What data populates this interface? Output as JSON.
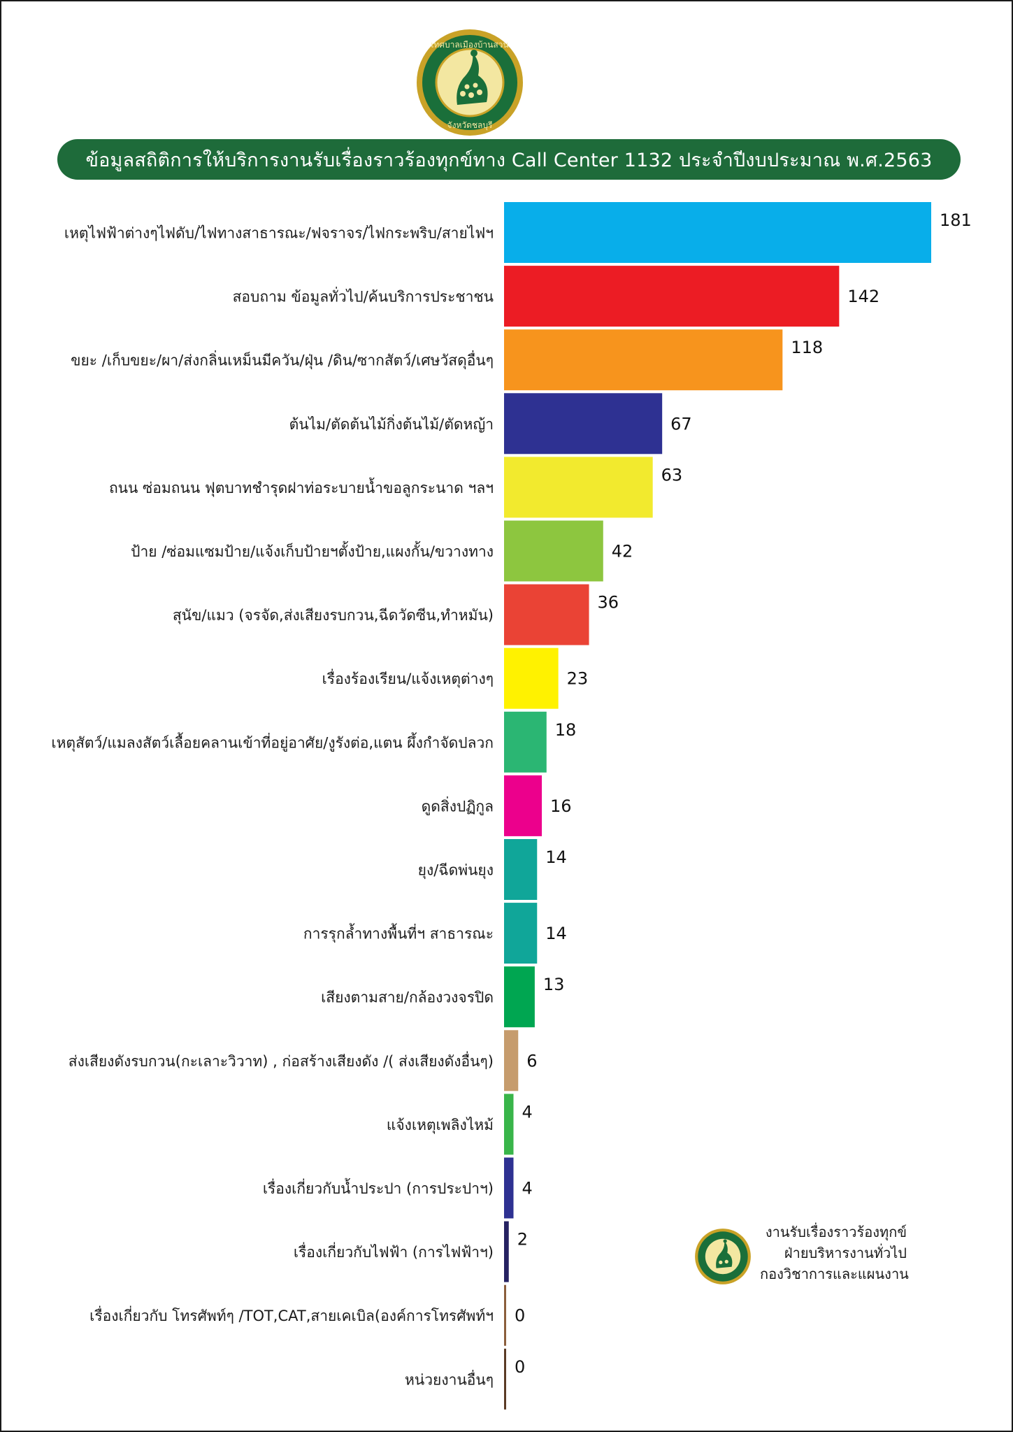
{
  "header": {
    "title": "ข้อมูลสถิติการให้บริการงานรับเรื่องราวร้องทุกข์ทาง Call Center 1132 ประจำปีงบประมาณ พ.ศ.2563"
  },
  "logo": {
    "icon": "municipal-seal-peacock",
    "ring_text_top": "เทศบาลเมืองบ้านสวน",
    "ring_text_bottom": "จังหวัดชลบุรี"
  },
  "credit": {
    "line1": "งานรับเรื่องราวร้องทุกข์",
    "line2": "ฝ่ายบริหารงานทั่วไป",
    "line3": "กองวิชาการและแผนงาน"
  },
  "chart_data": {
    "type": "bar",
    "orientation": "horizontal",
    "title": "ข้อมูลสถิติการให้บริการงานรับเรื่องราวร้องทุกข์ทาง Call Center 1132 ประจำปีงบประมาณ พ.ศ.2563",
    "xlabel": "",
    "ylabel": "",
    "grid": false,
    "xlim": [
      0,
      181
    ],
    "categories": [
      "เหตุไฟฟ้าต่างๆไฟดับ/ไฟทางสาธารณะ/ฟจราจร/ไฟกระพริบ/สายไฟฯ",
      "สอบถาม ข้อมูลทั่วไป/ค้นบริการประชาชน",
      "ขยะ /เก็บขยะ/ผา/ส่งกลิ่นเหม็นมีควัน/ฝุ่น /ดิน/ซากสัตว์/เศษวัสดุอื่นๆ",
      "ต้นไม/ตัดต้นไม้กิ่งต้นไม้/ตัดหญ้า",
      "ถนน ซ่อมถนน ฟุตบาทชำรุดฝาท่อระบายน้ำขอลูกระนาด ฯลฯ",
      "ป้าย /ซ่อมแซมป้าย/แจ้งเก็บป้ายฯตั้งป้าย,แผงกั้น/ขวางทาง",
      "สุนัข/แมว (จรจัด,ส่งเสียงรบกวน,ฉีดวัดซีน,ทำหมัน)",
      "เรื่องร้องเรียน/แจ้งเหตุต่างๆ",
      "เหตุสัตว์/แมลงสัตว์เลื้อยคลานเข้าที่อยู่อาศัย/งูรังต่อ,แตน ผึ้งกำจัดปลวก",
      "ดูดสิ่งปฏิกูล",
      "ยุง/ฉีดพ่นยุง",
      "การรุกล้ำทางพื้นที่ฯ สาธารณะ",
      "เสียงตามสาย/กล้องวงจรปิด",
      "ส่งเสียงดังรบกวน(กะเลาะวิวาท) , ก่อสร้างเสียงดัง /( ส่งเสียงดังอื่นๆ)",
      "แจ้งเหตุเพลิงไหม้",
      "เรื่องเกี่ยวกับน้ำประปา (การประปาฯ)",
      "เรื่องเกี่ยวกับไฟฟ้า (การไฟฟ้าฯ)",
      "เรื่องเกี่ยวกับ โทรศัพท์ๆ /TOT,CAT,สายเคเบิล(องค์การโทรศัพท์ฯ",
      "หน่วยงานอื่นๆ"
    ],
    "values": [
      181,
      142,
      118,
      67,
      63,
      42,
      36,
      23,
      18,
      16,
      14,
      14,
      13,
      6,
      4,
      4,
      2,
      0,
      0
    ],
    "value_labels": [
      "181",
      "142",
      "118",
      "67",
      "63",
      "42",
      "36",
      "23",
      "18",
      "16",
      "14",
      "14",
      "13",
      "6",
      "4",
      "4",
      "2",
      "0",
      "0"
    ],
    "colors": [
      "#08aeea",
      "#ec1c24",
      "#f7941d",
      "#2e3192",
      "#f2ea2e",
      "#8dc63f",
      "#ea4335",
      "#fff200",
      "#2bb673",
      "#ec008c",
      "#10a699",
      "#10a699",
      "#00a651",
      "#c69c6d",
      "#39b54a",
      "#2e3192",
      "#262262",
      "#8b5e3c",
      "#5a3b25"
    ]
  },
  "colors": {
    "title_bar": "#1e6b3a",
    "seal_ring": "#1a6f3a",
    "seal_gold": "#c9a227"
  }
}
